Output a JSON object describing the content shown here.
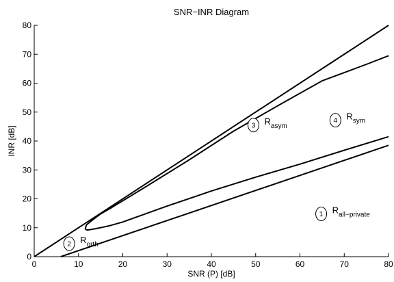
{
  "chart_data": {
    "type": "line",
    "title": "SNR−INR Diagram",
    "xlabel": "SNR (P) [dB]",
    "ylabel": "INR [dB]",
    "xlim": [
      0,
      80
    ],
    "ylim": [
      0,
      80
    ],
    "xticks": [
      0,
      10,
      20,
      30,
      40,
      50,
      60,
      70,
      80
    ],
    "yticks": [
      0,
      10,
      20,
      30,
      40,
      50,
      60,
      70,
      80
    ],
    "grid": false,
    "series": [
      {
        "x": [
          0,
          80
        ],
        "y": [
          0,
          80
        ]
      },
      {
        "x": [
          6,
          80
        ],
        "y": [
          0,
          38.5
        ]
      },
      {
        "x": [
          11.5,
          11.8,
          13,
          15,
          17.5,
          25,
          35,
          45,
          55,
          65,
          75,
          80
        ],
        "y": [
          9.5,
          11,
          12.5,
          14.8,
          17,
          24,
          33.5,
          43.4,
          52.2,
          60.8,
          66.5,
          69.5
        ]
      },
      {
        "x": [
          11.5,
          12,
          14,
          17,
          20,
          30,
          40,
          50,
          60,
          70,
          80
        ],
        "y": [
          9.5,
          9.2,
          9.7,
          10.7,
          12,
          17.5,
          22.7,
          27.5,
          32,
          36.8,
          41.5
        ]
      }
    ],
    "regions": [
      {
        "number": "1",
        "name": "R",
        "subscript": "all−private",
        "x": 64.8,
        "y": 14.8
      },
      {
        "number": "2",
        "name": "R",
        "subscript": "orth",
        "x": 7.9,
        "y": 4.5
      },
      {
        "number": "3",
        "name": "R",
        "subscript": "asym",
        "x": 49.5,
        "y": 45.5
      },
      {
        "number": "4",
        "name": "R",
        "subscript": "sym",
        "x": 68,
        "y": 47.2
      }
    ]
  }
}
